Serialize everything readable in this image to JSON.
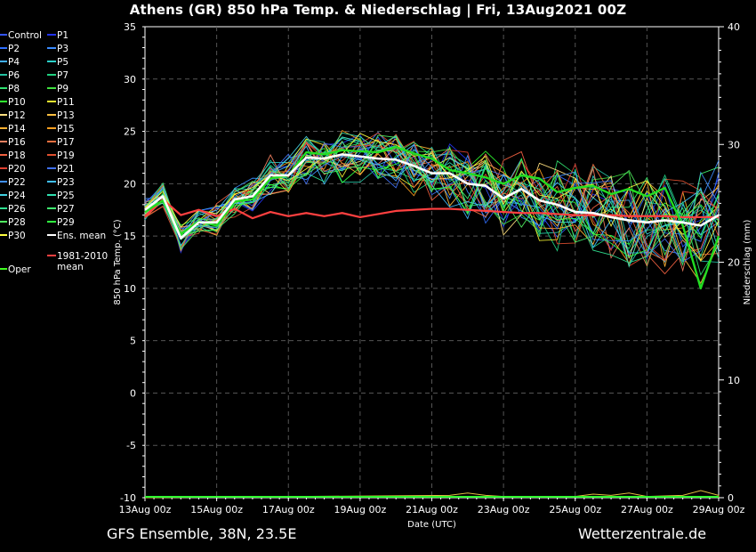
{
  "header": {
    "title": "Athens  (GR)  850 hPa Temp. & Niederschlag | Fri, 13Aug2021 00Z"
  },
  "footer": {
    "left": "GFS Ensemble, 38N, 23.5E",
    "right": "Wetterzentrale.de"
  },
  "legend": [
    {
      "label": "Control",
      "color": "#3355ff"
    },
    {
      "label": "P1",
      "color": "#2233ee"
    },
    {
      "label": "P2",
      "color": "#2f6fff"
    },
    {
      "label": "P3",
      "color": "#3b8cff"
    },
    {
      "label": "P4",
      "color": "#40b0ff"
    },
    {
      "label": "P5",
      "color": "#2bd0c8"
    },
    {
      "label": "P6",
      "color": "#22c0a0"
    },
    {
      "label": "P7",
      "color": "#20d080"
    },
    {
      "label": "P8",
      "color": "#30e070"
    },
    {
      "label": "P9",
      "color": "#40e040"
    },
    {
      "label": "P10",
      "color": "#30ff30"
    },
    {
      "label": "P11",
      "color": "#f0f030"
    },
    {
      "label": "P12",
      "color": "#ffe080"
    },
    {
      "label": "P13",
      "color": "#ffc040"
    },
    {
      "label": "P14",
      "color": "#ffb030"
    },
    {
      "label": "P15",
      "color": "#ffa020"
    },
    {
      "label": "P16",
      "color": "#f08060"
    },
    {
      "label": "P17",
      "color": "#f07040"
    },
    {
      "label": "P18",
      "color": "#f06040"
    },
    {
      "label": "P19",
      "color": "#e05030"
    },
    {
      "label": "P20",
      "color": "#e04030"
    },
    {
      "label": "P21",
      "color": "#4070f0"
    },
    {
      "label": "P22",
      "color": "#4090ff"
    },
    {
      "label": "P23",
      "color": "#40c0ff"
    },
    {
      "label": "P24",
      "color": "#40d0e0"
    },
    {
      "label": "P25",
      "color": "#30e0b0"
    },
    {
      "label": "P26",
      "color": "#30e090"
    },
    {
      "label": "P27",
      "color": "#40f070"
    },
    {
      "label": "P28",
      "color": "#50f060"
    },
    {
      "label": "P29",
      "color": "#30ff40"
    },
    {
      "label": "P30",
      "color": "#ffff40"
    },
    {
      "label": "Ens. mean",
      "color": "#ffffff"
    },
    {
      "label": "1981-2010",
      "color": "#ff4040"
    },
    {
      "label": "mean",
      "color": ""
    },
    {
      "label": "Oper",
      "color": "#40ff20"
    }
  ],
  "chart_data": {
    "type": "line",
    "xlabel": "Date (UTC)",
    "ylabel": "850 hPa Temp. (°C)",
    "y2label": "Niederschlag (mm)",
    "xlim": [
      0,
      16
    ],
    "ylim": [
      -10,
      35
    ],
    "y2lim": [
      0,
      40
    ],
    "yticks": [
      35,
      30,
      25,
      20,
      15,
      10,
      5,
      0,
      -5,
      -10
    ],
    "y2ticks": [
      40,
      30,
      20,
      10,
      0
    ],
    "xticks": [
      {
        "day": 0,
        "label": "13Aug 00z"
      },
      {
        "day": 2,
        "label": "15Aug 00z"
      },
      {
        "day": 4,
        "label": "17Aug 00z"
      },
      {
        "day": 6,
        "label": "19Aug 00z"
      },
      {
        "day": 8,
        "label": "21Aug 00z"
      },
      {
        "day": 10,
        "label": "23Aug 00z"
      },
      {
        "day": 12,
        "label": "25Aug 00z"
      },
      {
        "day": 14,
        "label": "27Aug 00z"
      },
      {
        "day": 16,
        "label": "29Aug 00z"
      }
    ],
    "grid": true,
    "ens_mean": {
      "name": "Ens. mean",
      "color": "#ffffff",
      "x": [
        0,
        0.5,
        1,
        1.5,
        2,
        2.5,
        3,
        3.5,
        4,
        4.5,
        5,
        5.5,
        6,
        6.5,
        7,
        7.5,
        8,
        8.5,
        9,
        9.5,
        10,
        10.5,
        11,
        11.5,
        12,
        12.5,
        13,
        13.5,
        14,
        14.5,
        15,
        15.5,
        16
      ],
      "y": [
        17.5,
        18.8,
        14.8,
        16.3,
        16.3,
        18.5,
        18.8,
        20.8,
        20.8,
        22.5,
        22.4,
        22.8,
        22.6,
        22.4,
        22.3,
        21.7,
        21.0,
        21.0,
        20.0,
        19.8,
        18.6,
        19.5,
        18.4,
        18.0,
        17.3,
        17.2,
        16.8,
        16.5,
        16.3,
        16.5,
        16.3,
        16.0,
        17.0
      ]
    },
    "climate_mean": {
      "name": "1981-2010 mean",
      "color": "#ff4040",
      "x": [
        0,
        0.5,
        1,
        1.5,
        2,
        2.5,
        3,
        3.5,
        4,
        4.5,
        5,
        5.5,
        6,
        6.5,
        7,
        7.5,
        8,
        8.5,
        9,
        9.5,
        10,
        10.5,
        11,
        11.5,
        12,
        12.5,
        13,
        13.5,
        14,
        14.5,
        15,
        15.5,
        16
      ],
      "y": [
        16.9,
        18.5,
        17.0,
        17.5,
        16.9,
        17.6,
        16.7,
        17.3,
        16.9,
        17.2,
        16.9,
        17.2,
        16.8,
        17.1,
        17.4,
        17.5,
        17.6,
        17.6,
        17.5,
        17.4,
        17.3,
        17.2,
        17.2,
        17.1,
        17.0,
        17.0,
        17.0,
        16.9,
        16.9,
        16.9,
        16.8,
        16.8,
        16.8
      ]
    },
    "oper": {
      "name": "Oper",
      "color": "#22dd22",
      "x": [
        0,
        0.5,
        1,
        1.5,
        2,
        2.5,
        3,
        3.5,
        4,
        4.5,
        5,
        5.5,
        6,
        6.5,
        7,
        7.5,
        8,
        8.5,
        9,
        9.5,
        10,
        10.5,
        11,
        11.5,
        12,
        12.5,
        13,
        13.5,
        14,
        14.5,
        15,
        15.5,
        16
      ],
      "y": [
        17.3,
        18.4,
        15.2,
        16.4,
        16.0,
        18.3,
        18.5,
        20.5,
        20.8,
        23.0,
        22.8,
        23.2,
        23.1,
        23.0,
        23.5,
        22.9,
        22.4,
        21.3,
        21.0,
        20.6,
        20.0,
        20.8,
        20.5,
        19.2,
        19.6,
        19.8,
        19.0,
        19.5,
        18.8,
        19.6,
        16.0,
        10.0,
        15.0
      ]
    },
    "precip": {
      "name": "Niederschlag",
      "x": [
        0,
        8.5,
        9,
        9.5,
        10,
        12,
        12.5,
        13,
        13.5,
        14,
        15,
        15.5,
        16
      ],
      "y": [
        0,
        0.2,
        0.4,
        0.2,
        0.1,
        0.1,
        0.3,
        0.2,
        0.4,
        0.1,
        0.2,
        0.6,
        0.2
      ]
    },
    "members_visible": 31
  }
}
